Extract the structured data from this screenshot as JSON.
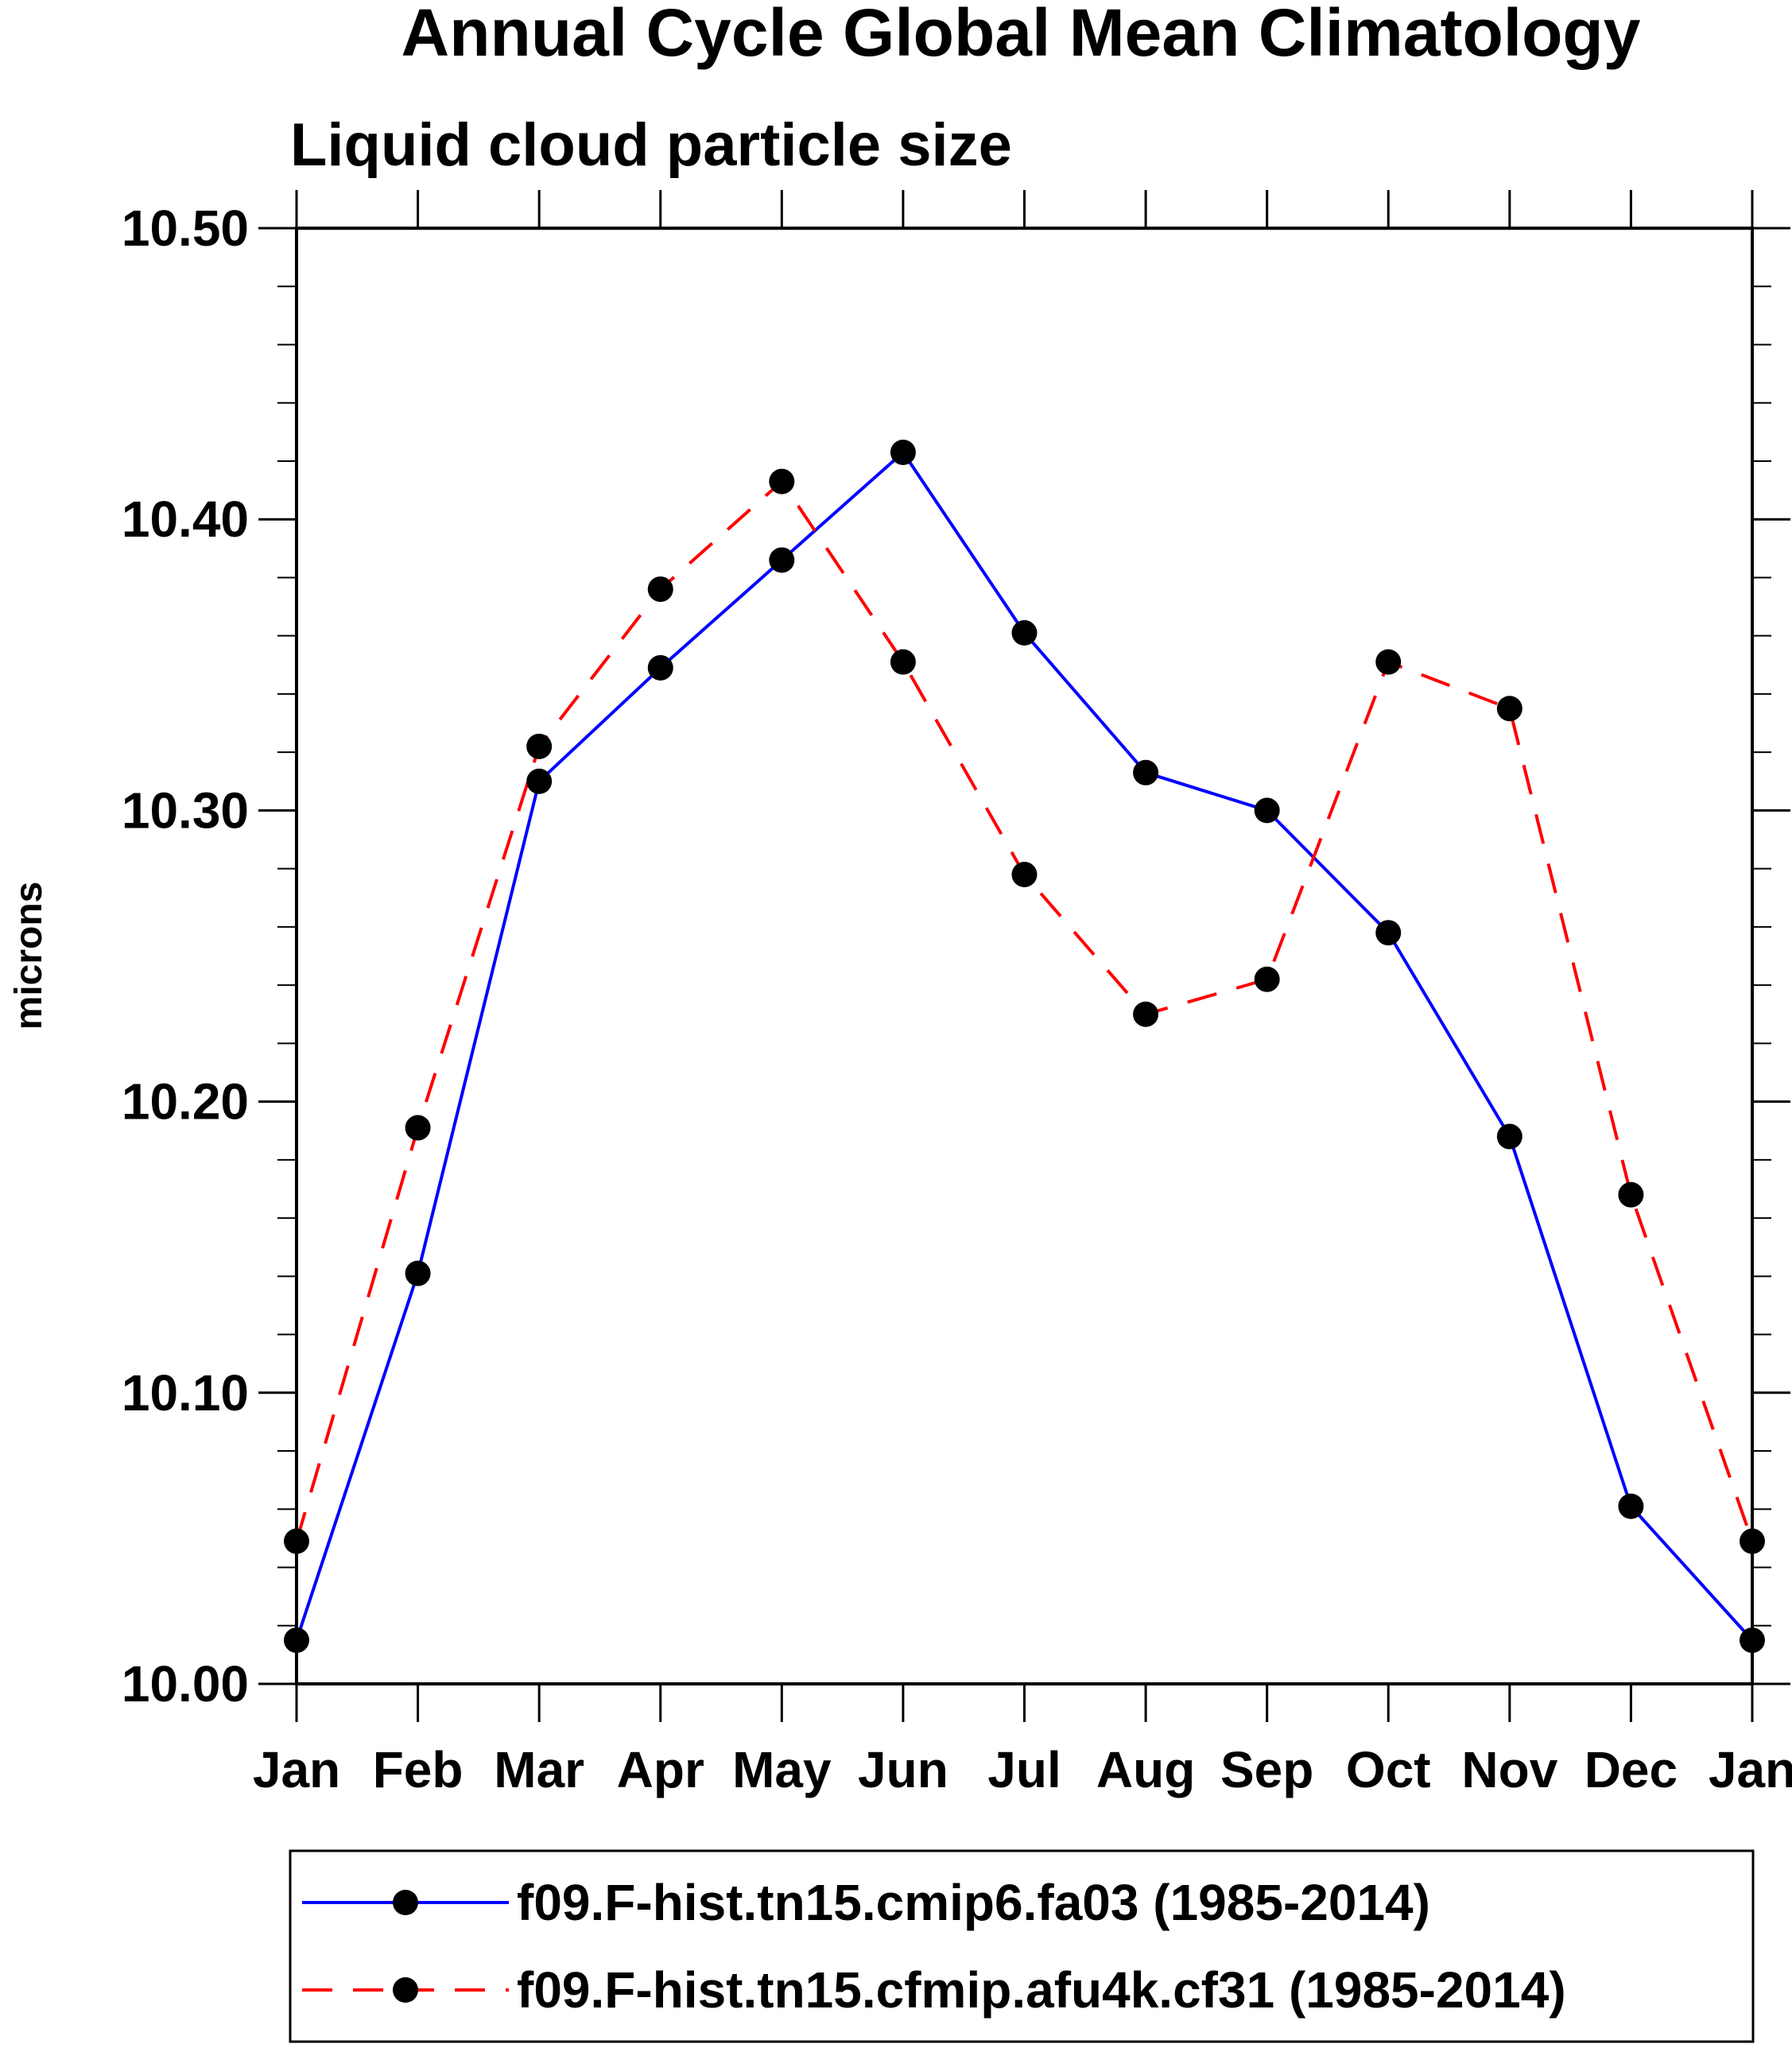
{
  "chart_data": {
    "type": "line",
    "title": "Annual Cycle Global Mean Climatology",
    "subtitle": "Liquid cloud particle size",
    "ylabel": "microns",
    "xlabel": "",
    "categories": [
      "Jan",
      "Feb",
      "Mar",
      "Apr",
      "May",
      "Jun",
      "Jul",
      "Aug",
      "Sep",
      "Oct",
      "Nov",
      "Dec",
      "Jan"
    ],
    "ylim": [
      10.0,
      10.5
    ],
    "yticks": [
      "10.00",
      "10.10",
      "10.20",
      "10.30",
      "10.40",
      "10.50"
    ],
    "y_minor_step": 0.02,
    "grid": false,
    "legend_position": "bottom",
    "series": [
      {
        "name": "f09.F-hist.tn15.cmip6.fa03 (1985-2014)",
        "color": "#0000ff",
        "line_style": "solid",
        "marker": "filled-circle",
        "values": [
          10.015,
          10.141,
          10.31,
          10.349,
          10.386,
          10.423,
          10.361,
          10.313,
          10.3,
          10.258,
          10.188,
          10.061,
          10.015
        ]
      },
      {
        "name": "f09.F-hist.tn15.cfmip.afu4k.cf31 (1985-2014)",
        "color": "#ff0000",
        "line_style": "dashed",
        "marker": "filled-circle",
        "values": [
          10.049,
          10.191,
          10.322,
          10.376,
          10.413,
          10.351,
          10.278,
          10.23,
          10.242,
          10.351,
          10.335,
          10.168,
          10.049
        ]
      }
    ]
  }
}
